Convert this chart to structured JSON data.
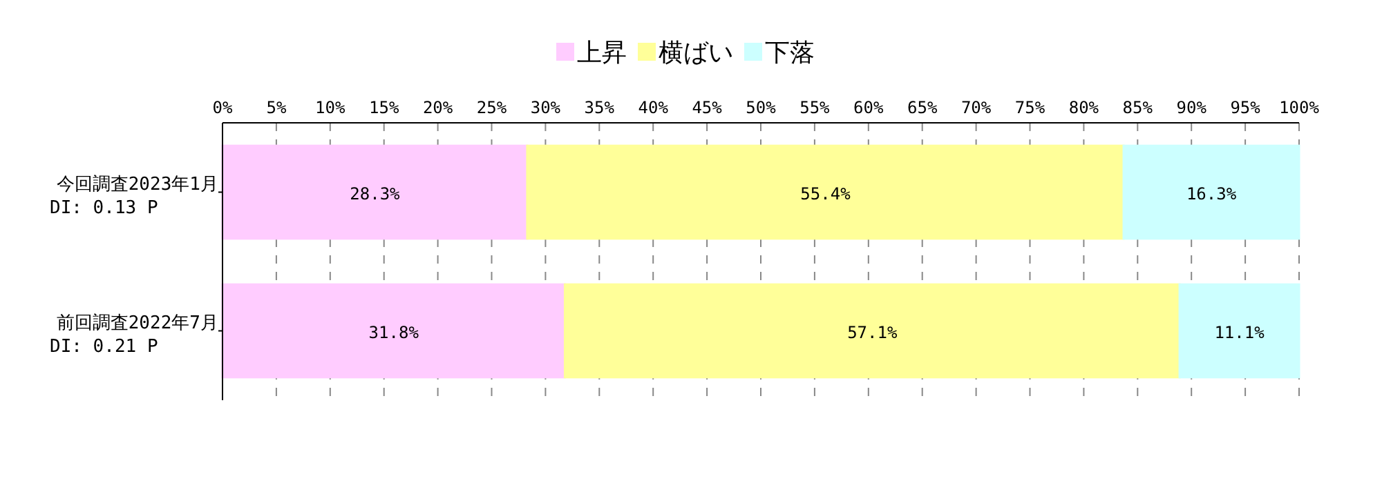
{
  "chart_data": {
    "type": "bar",
    "orientation": "horizontal",
    "stacked": true,
    "categories": [
      "今回調査2023年1月\nDI: 0.13 P",
      "前回調査2022年7月\nDI: 0.21 P"
    ],
    "series": [
      {
        "name": "上昇",
        "color": "#ffccff",
        "values": [
          28.3,
          31.8
        ],
        "value_labels": [
          "28.3%",
          "31.8%"
        ]
      },
      {
        "name": "横ばい",
        "color": "#ffff99",
        "values": [
          55.4,
          57.1
        ],
        "value_labels": [
          "55.4%",
          "57.1%"
        ]
      },
      {
        "name": "下落",
        "color": "#ccffff",
        "values": [
          16.3,
          11.1
        ],
        "value_labels": [
          "16.3%",
          "11.1%"
        ]
      }
    ],
    "xlim": [
      0,
      100
    ],
    "xticks": [
      {
        "value": 0,
        "label": "0%"
      },
      {
        "value": 5,
        "label": "5%"
      },
      {
        "value": 10,
        "label": "10%"
      },
      {
        "value": 15,
        "label": "15%"
      },
      {
        "value": 20,
        "label": "20%"
      },
      {
        "value": 25,
        "label": "25%"
      },
      {
        "value": 30,
        "label": "30%"
      },
      {
        "value": 35,
        "label": "35%"
      },
      {
        "value": 40,
        "label": "40%"
      },
      {
        "value": 45,
        "label": "45%"
      },
      {
        "value": 50,
        "label": "50%"
      },
      {
        "value": 55,
        "label": "55%"
      },
      {
        "value": 60,
        "label": "60%"
      },
      {
        "value": 65,
        "label": "65%"
      },
      {
        "value": 70,
        "label": "70%"
      },
      {
        "value": 75,
        "label": "75%"
      },
      {
        "value": 80,
        "label": "80%"
      },
      {
        "value": 85,
        "label": "85%"
      },
      {
        "value": 90,
        "label": "90%"
      },
      {
        "value": 95,
        "label": "95%"
      },
      {
        "value": 100,
        "label": "100%"
      }
    ],
    "grid": "x",
    "legend": "top"
  }
}
